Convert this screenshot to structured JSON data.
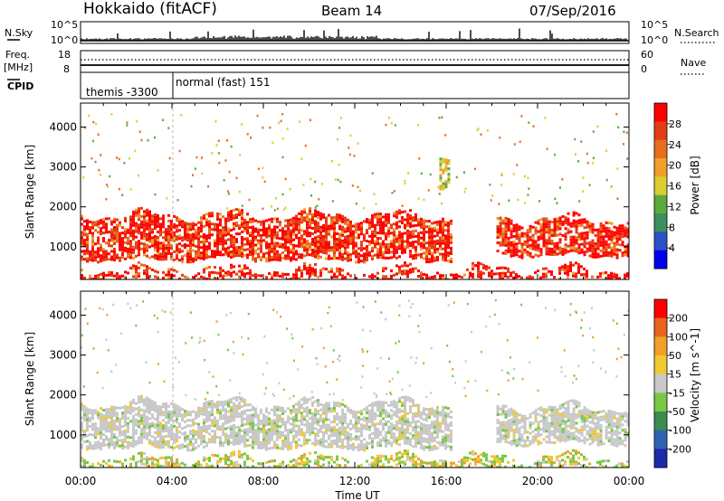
{
  "header": {
    "station": "Hokkaido (fitACF)",
    "beam": "Beam 14",
    "date": "07/Sep/2016"
  },
  "strip_panels": {
    "nsky": {
      "left_label": "N.Sky",
      "left_ticks": [
        "10^5",
        "10^0"
      ],
      "right_ticks": [
        "10^5",
        "10^0"
      ],
      "right_label": "N.Search"
    },
    "freq": {
      "left_label_1": "Freq.",
      "left_label_2": "[MHz]",
      "left_ticks": [
        "18",
        "8"
      ],
      "right_ticks": [
        "60",
        "0"
      ],
      "right_label": "Nave"
    },
    "cpid": {
      "label": "CPID",
      "modes": [
        "themis -3300",
        "normal (fast) 151"
      ]
    }
  },
  "chart_data": [
    {
      "type": "heatmap",
      "title": "",
      "xlabel": "",
      "ylabel": "Slant Range [km]",
      "x_range_hours": [
        0,
        24
      ],
      "ylim": [
        180,
        4600
      ],
      "y_ticks": [
        1000,
        2000,
        3000,
        4000
      ],
      "colorbar": {
        "label": "Power [dB]",
        "ticks": [
          "4",
          "8",
          "12",
          "16",
          "20",
          "24",
          "28"
        ],
        "colors": [
          "#0000ee",
          "#2d50c8",
          "#3d8f5d",
          "#5aaa3c",
          "#dccd32",
          "#f0a028",
          "#e66e1e",
          "#e63c14",
          "#ff0000"
        ]
      },
      "features": [
        {
          "name": "main band",
          "start_h": 0.0,
          "end_h": 16.2,
          "range_low_km": 700,
          "range_high_km": 1800,
          "level": "high"
        },
        {
          "name": "main band",
          "start_h": 18.2,
          "end_h": 24.0,
          "range_low_km": 800,
          "range_high_km": 1700,
          "level": "high"
        },
        {
          "name": "near range",
          "start_h": 0.0,
          "end_h": 24.0,
          "range_low_km": 200,
          "range_high_km": 450,
          "level": "high"
        },
        {
          "name": "patch",
          "start_h": 15.7,
          "end_h": 16.1,
          "range_low_km": 2500,
          "range_high_km": 3300,
          "level": "medium"
        }
      ]
    },
    {
      "type": "heatmap",
      "title": "",
      "xlabel": "Time UT",
      "ylabel": "Slant Range [km]",
      "x_range_hours": [
        0,
        24
      ],
      "x_ticks": [
        "00:00",
        "04:00",
        "08:00",
        "12:00",
        "16:00",
        "20:00",
        "00:00"
      ],
      "ylim": [
        180,
        4600
      ],
      "y_ticks": [
        1000,
        2000,
        3000,
        4000
      ],
      "colorbar": {
        "label": "Velocity [m s^-1]",
        "ticks": [
          "200",
          "100",
          "50",
          "15",
          "-15",
          "-50",
          "-100",
          "-200"
        ],
        "colors": [
          "#1e28aa",
          "#2d64b4",
          "#3c8c50",
          "#78c846",
          "#c8c8c8",
          "#f0c832",
          "#f0a028",
          "#e6641e",
          "#ff0000"
        ]
      },
      "features": [
        {
          "name": "main band",
          "start_h": 0.0,
          "end_h": 16.2,
          "range_low_km": 700,
          "range_high_km": 1800,
          "velocity": "near zero"
        },
        {
          "name": "main band",
          "start_h": 18.2,
          "end_h": 24.0,
          "range_low_km": 800,
          "range_high_km": 1700,
          "velocity": "near zero"
        },
        {
          "name": "near range",
          "start_h": 0.0,
          "end_h": 24.0,
          "range_low_km": 200,
          "range_high_km": 450,
          "velocity": "positive / negative mixed"
        }
      ]
    }
  ]
}
